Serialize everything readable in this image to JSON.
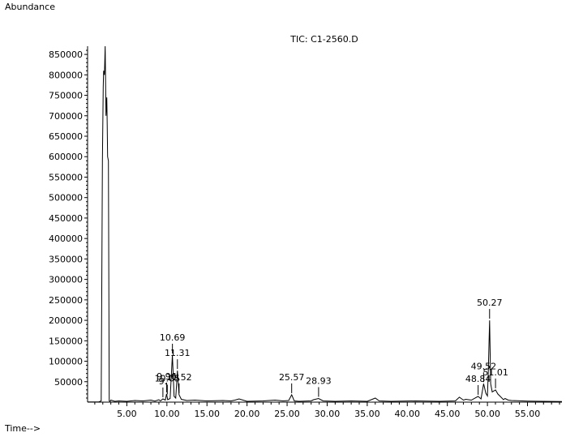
{
  "chart_data": {
    "type": "line",
    "title": "TIC: C1-2560.D",
    "ylabel": "Abundance",
    "xlabel": "Time-->",
    "xlim": [
      0.1,
      59.3
    ],
    "ylim": [
      0,
      870000
    ],
    "x_ticks": [
      "5.00",
      "10.00",
      "15.00",
      "20.00",
      "25.00",
      "30.00",
      "35.00",
      "40.00",
      "45.00",
      "50.00",
      "55.00"
    ],
    "y_ticks": [
      "50000",
      "100000",
      "150000",
      "200000",
      "250000",
      "300000",
      "350000",
      "400000",
      "450000",
      "500000",
      "550000",
      "600000",
      "650000",
      "700000",
      "750000",
      "800000",
      "850000"
    ],
    "series": [
      {
        "x": [
          0.1,
          1.5,
          1.8,
          1.95,
          2.05,
          2.1,
          2.2,
          2.3,
          2.4,
          2.5,
          2.55,
          2.6,
          2.7,
          2.8,
          2.9,
          3.0,
          3.5,
          4.0,
          5.0,
          6.0,
          7.0,
          8.0,
          8.5,
          9.0,
          9.2,
          9.5,
          9.8,
          9.96,
          10.1,
          10.4,
          10.69,
          10.9,
          11.1,
          11.31,
          11.52,
          11.8,
          12.5,
          13.5,
          15.0,
          17.0,
          18.0,
          18.5,
          19.0,
          20.0,
          22.0,
          23.5,
          24.5,
          25.2,
          25.57,
          25.9,
          26.5,
          28.0,
          28.3,
          28.93,
          29.5,
          31.0,
          33.0,
          35.0,
          36.0,
          36.5,
          38.0,
          41.0,
          44.0,
          46.0,
          46.5,
          47.0,
          47.3,
          48.0,
          48.84,
          49.2,
          49.52,
          49.8,
          50.0,
          50.1,
          50.27,
          50.4,
          50.6,
          51.01,
          51.3,
          51.6,
          52.0,
          52.2,
          52.6,
          53.0,
          55.0,
          57.0,
          59.3
        ],
        "y": [
          500,
          500,
          3000,
          590000,
          770000,
          810000,
          800000,
          870000,
          700000,
          745000,
          680000,
          600000,
          590000,
          3000,
          1500,
          5000,
          2000,
          3000,
          2000,
          4000,
          3000,
          5000,
          2500,
          6000,
          3000,
          8000,
          5000,
          20000,
          6000,
          9000,
          115000,
          14000,
          10000,
          77000,
          18000,
          7000,
          4000,
          5000,
          3000,
          4000,
          3000,
          5000,
          8000,
          2000,
          3000,
          5000,
          3000,
          4000,
          18000,
          3000,
          2000,
          3000,
          6000,
          9000,
          3000,
          2000,
          3000,
          2000,
          10000,
          3000,
          2000,
          3000,
          2000,
          3000,
          12000,
          5000,
          7000,
          5000,
          14000,
          8000,
          45000,
          22000,
          15000,
          70000,
          200000,
          45000,
          25000,
          30000,
          20000,
          14000,
          6000,
          9000,
          5000,
          4000,
          2500,
          2000,
          1500
        ]
      }
    ],
    "annotations": [
      {
        "label": "10.69",
        "x": 10.69,
        "y": 115000
      },
      {
        "label": "11.31",
        "x": 11.31,
        "y": 77000
      },
      {
        "label": "9.96",
        "x": 9.96,
        "y": 20000
      },
      {
        "label": "10.05",
        "x": 10.05,
        "y": 15000
      },
      {
        "label": "11.52",
        "x": 11.52,
        "y": 18000
      },
      {
        "label": "9.",
        "x": 9.5,
        "y": 8000
      },
      {
        "label": "25.57",
        "x": 25.57,
        "y": 18000
      },
      {
        "label": "28.93",
        "x": 28.93,
        "y": 9000
      },
      {
        "label": "50.27",
        "x": 50.27,
        "y": 200000
      },
      {
        "label": "51.01",
        "x": 51.01,
        "y": 30000
      },
      {
        "label": "49.52",
        "x": 49.52,
        "y": 45000
      },
      {
        "label": "48.84",
        "x": 48.84,
        "y": 14000
      }
    ]
  }
}
